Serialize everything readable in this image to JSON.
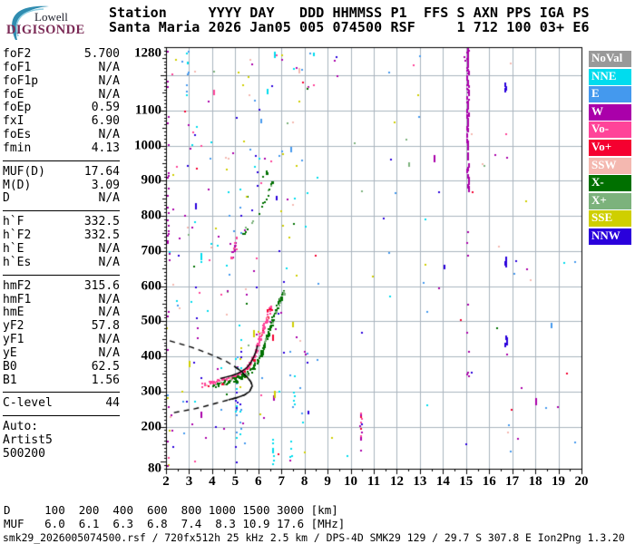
{
  "logo": {
    "line1": "Lowell",
    "line2": "DIGISONDE"
  },
  "header": {
    "line1": "Station     YYYY DAY   DDD HHMMSS P1  FFS S AXN PPS IGA PS",
    "line2": "Santa Maria 2026 Jan05 005 074500 RSF     1 712 100 03+ E6"
  },
  "params": {
    "groups": [
      {
        "rows": [
          [
            "foF2",
            "5.700"
          ],
          [
            "foF1",
            "N/A"
          ],
          [
            "foF1p",
            "N/A"
          ],
          [
            "foE",
            "N/A"
          ],
          [
            "foEp",
            "0.59"
          ],
          [
            "fxI",
            "6.90"
          ],
          [
            "foEs",
            "N/A"
          ],
          [
            "fmin",
            "4.13"
          ]
        ]
      },
      {
        "rows": [
          [
            "MUF(D)",
            "17.64"
          ],
          [
            "M(D)",
            "3.09"
          ],
          [
            "D",
            "N/A"
          ]
        ]
      },
      {
        "rows": [
          [
            "h`F",
            "332.5"
          ],
          [
            "h`F2",
            "332.5"
          ],
          [
            "h`E",
            "N/A"
          ],
          [
            "h`Es",
            "N/A"
          ]
        ]
      },
      {
        "rows": [
          [
            "hmF2",
            "315.6"
          ],
          [
            "hmF1",
            "N/A"
          ],
          [
            "hmE",
            "N/A"
          ],
          [
            "yF2",
            "57.8"
          ],
          [
            "yF1",
            "N/A"
          ],
          [
            "yE",
            "N/A"
          ],
          [
            "B0",
            "62.5"
          ],
          [
            "B1",
            "1.56"
          ]
        ]
      },
      {
        "rows": [
          [
            "C-level",
            "44"
          ]
        ]
      },
      {
        "rows": [
          [
            "Auto:",
            ""
          ],
          [
            "Artist5",
            ""
          ],
          [
            "500200",
            ""
          ]
        ],
        "nodiv": true
      }
    ]
  },
  "legend": {
    "items": [
      {
        "label": "NoVal",
        "color": "#999999"
      },
      {
        "label": "NNE",
        "color": "#00DCEE"
      },
      {
        "label": "E",
        "color": "#4499EE"
      },
      {
        "label": "W",
        "color": "#AA00AA"
      },
      {
        "label": "Vo-",
        "color": "#FF4499"
      },
      {
        "label": "Vo+",
        "color": "#F50030"
      },
      {
        "label": "SSW",
        "color": "#F4B8B0"
      },
      {
        "label": "X-",
        "color": "#007000"
      },
      {
        "label": "X+",
        "color": "#7CB27C"
      },
      {
        "label": "SSE",
        "color": "#CFCF00"
      },
      {
        "label": "NNW",
        "color": "#2A00DC"
      }
    ]
  },
  "d_muf": {
    "d_row": "D     100  200  400  600  800 1000 1500 3000 [km]",
    "muf_row": "MUF   6.0  6.1  6.3  6.8  7.4  8.3 10.9 17.6 [MHz]",
    "distances_km": [
      100,
      200,
      400,
      600,
      800,
      1000,
      1500,
      3000
    ],
    "muf_mhz": [
      6.0,
      6.1,
      6.3,
      6.8,
      7.4,
      8.3,
      10.9,
      17.6
    ]
  },
  "status_line": "smk29_2026005074500.rsf / 720fx512h 25 kHz 2.5 km / DPS-4D SMK29 129 / 29.7 S 307.8 E Ion2Png 1.3.20",
  "chart_data": {
    "type": "scatter",
    "title": "Digisonde ionogram Santa Maria 2026 Jan05 074500",
    "xlim": [
      2,
      20
    ],
    "ylim": [
      80,
      1280
    ],
    "x_unit": "MHz",
    "y_unit": "km",
    "grid": {
      "x_step": 1,
      "y_step": 100,
      "color": "#A9B4BE"
    },
    "x_ticks": [
      2,
      3,
      4,
      5,
      6,
      7,
      8,
      9,
      10,
      11,
      12,
      13,
      14,
      15,
      16,
      17,
      18,
      19,
      20
    ],
    "y_tick_values": [
      1280,
      1100,
      1000,
      900,
      800,
      700,
      600,
      500,
      400,
      300,
      200,
      80
    ],
    "y_tick_labels": [
      "1280",
      "1100",
      "1000",
      "900",
      "800",
      "700",
      "600",
      "500",
      "400",
      "300",
      "200",
      "80"
    ],
    "traces": [
      {
        "name": "F2-ordinary-1st-hop",
        "colors": [
          "#FF4499",
          "#F50030",
          "#F4B8B0"
        ],
        "weights": [
          0.8,
          0.1,
          0.1
        ],
        "density": 2.2,
        "jitter_f": 0.05,
        "jitter_h": 7,
        "spine": [
          [
            3.55,
            321
          ],
          [
            3.8,
            324
          ],
          [
            4.05,
            327
          ],
          [
            4.3,
            331
          ],
          [
            4.55,
            335
          ],
          [
            4.8,
            340
          ],
          [
            5.0,
            346
          ],
          [
            5.2,
            353
          ],
          [
            5.4,
            363
          ],
          [
            5.55,
            375
          ],
          [
            5.7,
            391
          ],
          [
            5.82,
            410
          ],
          [
            5.92,
            430
          ],
          [
            6.02,
            450
          ],
          [
            6.12,
            470
          ],
          [
            6.22,
            490
          ],
          [
            6.33,
            512
          ],
          [
            6.45,
            532
          ],
          [
            6.55,
            545
          ]
        ]
      },
      {
        "name": "F2-extraordinary-1st-hop",
        "colors": [
          "#007000",
          "#7CB27C"
        ],
        "weights": [
          0.85,
          0.15
        ],
        "density": 2.0,
        "jitter_f": 0.05,
        "jitter_h": 7,
        "spine": [
          [
            4.05,
            320
          ],
          [
            4.3,
            324
          ],
          [
            4.55,
            328
          ],
          [
            4.8,
            332
          ],
          [
            5.05,
            337
          ],
          [
            5.25,
            343
          ],
          [
            5.45,
            351
          ],
          [
            5.65,
            361
          ],
          [
            5.8,
            373
          ],
          [
            5.95,
            388
          ],
          [
            6.08,
            406
          ],
          [
            6.18,
            424
          ],
          [
            6.28,
            444
          ],
          [
            6.38,
            464
          ],
          [
            6.5,
            488
          ],
          [
            6.62,
            512
          ],
          [
            6.75,
            535
          ],
          [
            6.87,
            556
          ],
          [
            6.98,
            574
          ],
          [
            7.08,
            592
          ]
        ]
      },
      {
        "name": "F2-ordinary-2nd-hop",
        "colors": [
          "#AA00AA",
          "#FF4499",
          "#F4B8B0"
        ],
        "weights": [
          0.45,
          0.4,
          0.15
        ],
        "density": 1.8,
        "jitter_f": 0.06,
        "jitter_h": 9,
        "spine": [
          [
            4.82,
            692
          ],
          [
            4.95,
            715
          ],
          [
            5.06,
            738
          ]
        ]
      },
      {
        "name": "F2-extraordinary-2nd-hop",
        "colors": [
          "#007000",
          "#7CB27C"
        ],
        "weights": [
          0.8,
          0.2
        ],
        "density": 0.45,
        "jitter_f": 0.04,
        "jitter_h": 5,
        "spine": [
          [
            5.15,
            743
          ],
          [
            5.3,
            748
          ],
          [
            5.45,
            755
          ],
          [
            5.6,
            770
          ],
          [
            5.75,
            788
          ],
          [
            5.9,
            800
          ],
          [
            6.05,
            818
          ],
          [
            6.18,
            835
          ],
          [
            6.3,
            850
          ],
          [
            6.42,
            872
          ],
          [
            6.52,
            890
          ],
          [
            6.6,
            903
          ]
        ]
      },
      {
        "name": "F2-2nd-hop-spread",
        "colors": [
          "#007000",
          "#7CB27C"
        ],
        "weights": [
          0.8,
          0.2
        ],
        "density": 0.3,
        "jitter_f": 0.04,
        "jitter_h": 5,
        "spine": [
          [
            6.1,
            905
          ],
          [
            6.25,
            918
          ],
          [
            6.4,
            930
          ]
        ]
      }
    ],
    "profile_overlay": {
      "name": "artist5-true-height-profile",
      "color": "#000000",
      "peak": {
        "foF2": 5.7,
        "hmF2": 315.6
      },
      "topside": [
        [
          2.16,
          444
        ],
        [
          2.6,
          436
        ],
        [
          3.1,
          426
        ],
        [
          3.6,
          414
        ],
        [
          4.1,
          401
        ],
        [
          4.6,
          386
        ],
        [
          4.95,
          372
        ],
        [
          5.25,
          358
        ],
        [
          5.5,
          342
        ],
        [
          5.67,
          328
        ],
        [
          5.74,
          316
        ]
      ],
      "topside_solid_from_f": 4.95,
      "bottomside": [
        [
          5.74,
          316
        ],
        [
          5.62,
          300
        ],
        [
          5.4,
          290
        ],
        [
          5.05,
          282
        ],
        [
          4.7,
          276
        ],
        [
          4.2,
          267
        ],
        [
          3.7,
          258
        ],
        [
          3.2,
          250
        ],
        [
          2.7,
          244
        ],
        [
          2.3,
          239
        ]
      ],
      "bottomside_solid_to_f": 4.7
    },
    "fitted_trace": {
      "name": "artist5-fitted-hf-trace",
      "color": "#000000",
      "points": [
        [
          4.35,
          337
        ],
        [
          4.6,
          341
        ],
        [
          4.85,
          345
        ],
        [
          5.1,
          351
        ],
        [
          5.35,
          360
        ],
        [
          5.55,
          371
        ],
        [
          5.7,
          385
        ],
        [
          5.82,
          401
        ],
        [
          5.91,
          417
        ],
        [
          5.97,
          431
        ]
      ]
    },
    "rfi_columns": [
      {
        "f": 2.06,
        "h": [
          85,
          1275
        ],
        "colors": [
          "#AA00AA"
        ],
        "density": 0.09
      },
      {
        "f": 2.9,
        "h": [
          1140,
          1270
        ],
        "colors": [
          "#00DCEE",
          "#4499EE"
        ],
        "density": 0.3
      },
      {
        "f": 5.02,
        "h": [
          95,
          400
        ],
        "colors": [
          "#00DCEE",
          "#4499EE",
          "#2A00DC"
        ],
        "density": 0.22
      },
      {
        "f": 5.2,
        "h": [
          180,
          540
        ],
        "colors": [
          "#2A00DC",
          "#4499EE",
          "#00DCEE",
          "#CFCF00"
        ],
        "density": 0.2
      },
      {
        "f": 6.62,
        "h": [
          95,
          165
        ],
        "colors": [
          "#00DCEE"
        ],
        "density": 0.5
      },
      {
        "f": 7.38,
        "h": [
          100,
          160
        ],
        "colors": [
          "#00DCEE"
        ],
        "density": 0.5
      },
      {
        "f": 7.52,
        "h": [
          245,
          345
        ],
        "colors": [
          "#00DCEE"
        ],
        "density": 0.3
      },
      {
        "f": 10.42,
        "h": [
          130,
          245
        ],
        "colors": [
          "#F50030",
          "#FF4499",
          "#AA00AA",
          "#2A00DC"
        ],
        "density": 0.45
      },
      {
        "f": 14.92,
        "h": [
          1200,
          1275
        ],
        "colors": [
          "#AA00AA"
        ],
        "density": 0.3
      },
      {
        "f": 15.05,
        "h": [
          1120,
          1280
        ],
        "colors": [
          "#AA00AA"
        ],
        "density": 0.97,
        "step": 3
      },
      {
        "f": 15.05,
        "h": [
          880,
          1120
        ],
        "colors": [
          "#AA00AA"
        ],
        "density": 0.45,
        "dash": true
      },
      {
        "f": 15.05,
        "h": [
          300,
          880
        ],
        "colors": [
          "#AA00AA"
        ],
        "density": 0.05
      },
      {
        "f": 16.7,
        "h": [
          440,
          460
        ],
        "colors": [
          "#2A00DC"
        ],
        "density": 0.6,
        "dash": true
      },
      {
        "f": 16.7,
        "h": [
          665,
          685
        ],
        "colors": [
          "#2A00DC"
        ],
        "density": 0.6,
        "dash": true
      },
      {
        "f": 16.7,
        "h": [
          1165,
          1185
        ],
        "colors": [
          "#2A00DC"
        ],
        "density": 0.6,
        "dash": true
      }
    ],
    "noise": {
      "seed": 7,
      "count": 280,
      "left_bias": 0.62,
      "colors": [
        "#4499EE",
        "#00DCEE",
        "#2A00DC",
        "#AA00AA",
        "#CFCF00",
        "#F4B8B0",
        "#7CB27C",
        "#007000",
        "#FF4499",
        "#F50030"
      ],
      "weights": [
        0.2,
        0.13,
        0.14,
        0.14,
        0.16,
        0.08,
        0.04,
        0.03,
        0.05,
        0.03
      ]
    }
  }
}
